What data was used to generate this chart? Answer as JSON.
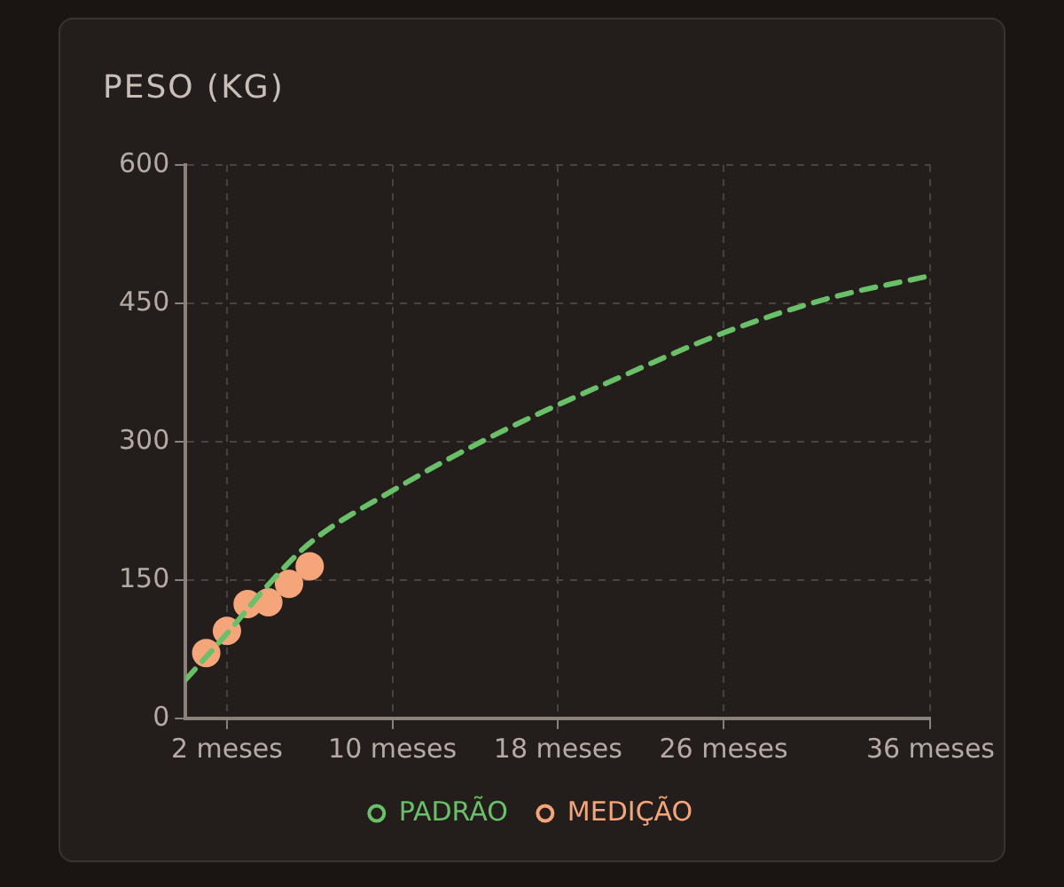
{
  "chart_data": {
    "type": "line",
    "title": "PESO (KG)",
    "xlim": [
      0,
      36
    ],
    "xticks": [
      {
        "value": 2,
        "label": "2 meses"
      },
      {
        "value": 10,
        "label": "10 meses"
      },
      {
        "value": 18,
        "label": "18 meses"
      },
      {
        "value": 26,
        "label": "26 meses"
      },
      {
        "value": 36,
        "label": "36 meses"
      }
    ],
    "ylim": [
      0,
      600
    ],
    "yticks": [
      0,
      150,
      300,
      450,
      600
    ],
    "grid": true,
    "legend": "bottom",
    "series": [
      {
        "name": "PADRÃO",
        "color": "#6abf69",
        "line_style": "dashed",
        "marker": "none",
        "x": [
          0,
          2,
          4,
          6,
          10,
          15,
          21,
          26,
          31,
          36
        ],
        "values": [
          42,
          92,
          145,
          190,
          247,
          308,
          370,
          418,
          455,
          480
        ]
      },
      {
        "name": "MEDIÇÃO",
        "type": "scatter",
        "color": "#f4a57a",
        "marker": "circle",
        "x": [
          1,
          2,
          3,
          4,
          5,
          6
        ],
        "values": [
          71,
          95,
          124,
          126,
          146,
          165
        ]
      }
    ]
  }
}
